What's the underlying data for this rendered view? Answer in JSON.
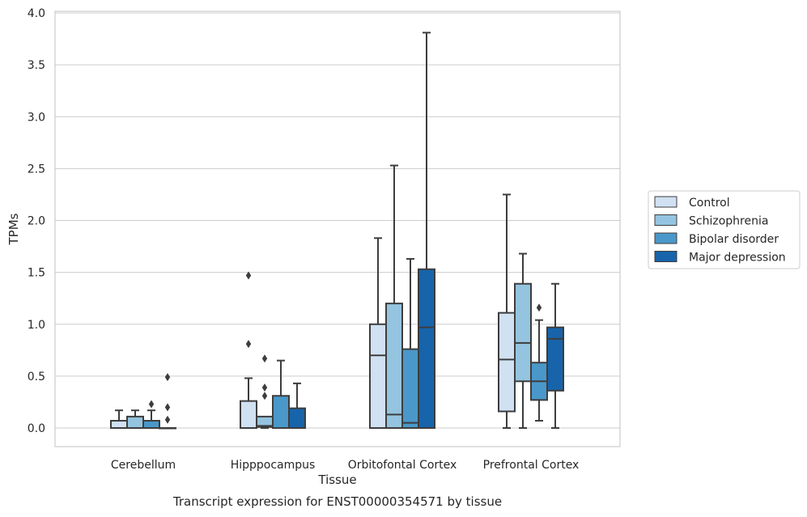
{
  "chart_data": {
    "type": "box",
    "title": "",
    "caption": "Transcript expression for ENST00000354571 by tissue",
    "xlabel": "Tissue",
    "ylabel": "TPMs",
    "ylim": [
      -0.18,
      4.02
    ],
    "yticks": [
      0.0,
      0.5,
      1.0,
      1.5,
      2.0,
      2.5,
      3.0,
      3.5,
      4.0
    ],
    "ytick_labels": [
      "0.0",
      "0.5",
      "1.0",
      "1.5",
      "2.0",
      "2.5",
      "3.0",
      "3.5",
      "4.0"
    ],
    "grid": true,
    "legend_position": "right",
    "categories": [
      "Cerebellum",
      "Hipppocampus",
      "Orbitofontal Cortex",
      "Prefrontal Cortex"
    ],
    "series": [
      {
        "name": "Control",
        "color": "#d0e1f2",
        "boxes": [
          {
            "min": 0.0,
            "q1": 0.0,
            "median": 0.0,
            "q3": 0.07,
            "max": 0.17,
            "outliers": []
          },
          {
            "min": 0.0,
            "q1": 0.0,
            "median": 0.0,
            "q3": 0.26,
            "max": 0.48,
            "outliers": [
              0.81,
              1.47
            ]
          },
          {
            "min": 0.0,
            "q1": 0.0,
            "median": 0.7,
            "q3": 1.0,
            "max": 1.83,
            "outliers": []
          },
          {
            "min": 0.0,
            "q1": 0.16,
            "median": 0.66,
            "q3": 1.11,
            "max": 2.25,
            "outliers": []
          }
        ]
      },
      {
        "name": "Schizophrenia",
        "color": "#94c4df",
        "boxes": [
          {
            "min": 0.0,
            "q1": 0.0,
            "median": 0.0,
            "q3": 0.11,
            "max": 0.17,
            "outliers": []
          },
          {
            "min": 0.0,
            "q1": 0.01,
            "median": 0.02,
            "q3": 0.11,
            "max": 0.11,
            "outliers": []
          },
          {
            "min": 0.0,
            "q1": 0.0,
            "median": 0.13,
            "q3": 1.2,
            "max": 2.53,
            "outliers": []
          },
          {
            "min": 0.0,
            "q1": 0.45,
            "median": 0.82,
            "q3": 1.39,
            "max": 1.68,
            "outliers": []
          }
        ]
      },
      {
        "name": "Bipolar disorder",
        "color": "#4a98c9",
        "boxes": [
          {
            "min": 0.0,
            "q1": 0.0,
            "median": 0.0,
            "q3": 0.07,
            "max": 0.17,
            "outliers": [
              0.23
            ]
          },
          {
            "min": 0.0,
            "q1": 0.0,
            "median": 0.0,
            "q3": 0.31,
            "max": 0.65,
            "outliers": []
          },
          {
            "min": 0.0,
            "q1": 0.0,
            "median": 0.05,
            "q3": 0.76,
            "max": 1.63,
            "outliers": []
          },
          {
            "min": 0.07,
            "q1": 0.27,
            "median": 0.45,
            "q3": 0.63,
            "max": 1.04,
            "outliers": [
              1.16
            ]
          }
        ]
      },
      {
        "name": "Major depression",
        "color": "#1764ab",
        "boxes": [
          {
            "min": 0.0,
            "q1": 0.0,
            "median": 0.0,
            "q3": 0.0,
            "max": 0.0,
            "outliers": [
              0.08,
              0.2,
              0.49
            ]
          },
          {
            "min": 0.0,
            "q1": 0.0,
            "median": 0.0,
            "q3": 0.19,
            "max": 0.43,
            "outliers": []
          },
          {
            "min": 0.0,
            "q1": 0.0,
            "median": 0.97,
            "q3": 1.53,
            "max": 3.81,
            "outliers": []
          },
          {
            "min": 0.0,
            "q1": 0.36,
            "median": 0.86,
            "q3": 0.97,
            "max": 1.39,
            "outliers": []
          }
        ]
      }
    ]
  },
  "extra_outliers": {
    "Hipppocampus": {
      "series": "Schizophrenia",
      "values": [
        0.31,
        0.39,
        0.67
      ]
    }
  }
}
